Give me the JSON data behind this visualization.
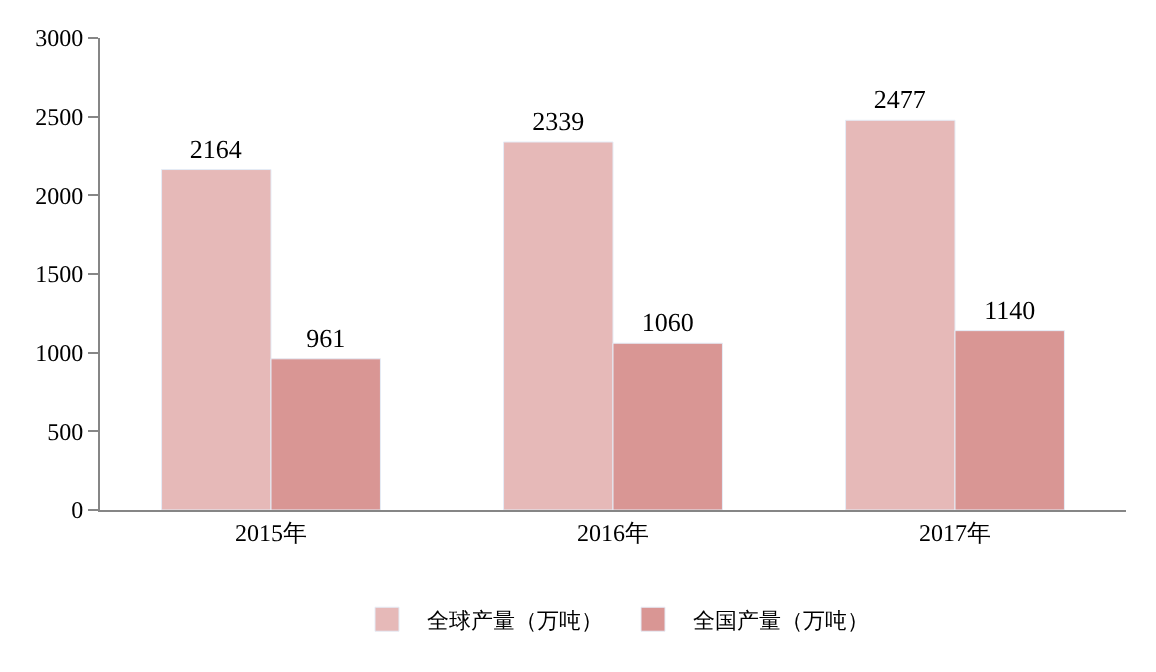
{
  "chart_data": {
    "type": "bar",
    "categories": [
      "2015年",
      "2016年",
      "2017年"
    ],
    "series": [
      {
        "name": "全球产量（万吨）",
        "color": "#e6b9b8",
        "values": [
          2164,
          2339,
          2477
        ]
      },
      {
        "name": "全国产量（万吨）",
        "color": "#d99694",
        "values": [
          961,
          1060,
          1140
        ]
      }
    ],
    "ylim": [
      0,
      3000
    ],
    "yticks": [
      0,
      500,
      1000,
      1500,
      2000,
      2500,
      3000
    ],
    "legend": "bottom",
    "data_labels": true
  }
}
